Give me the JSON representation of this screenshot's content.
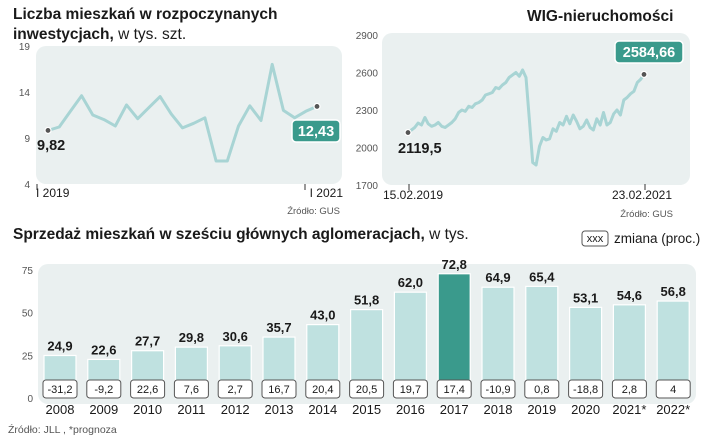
{
  "colors": {
    "panel": "#eaf0f0",
    "line": "#a8d4d4",
    "bar": "#bfe1e0",
    "highlight": "#3a9a8c",
    "callout": "#3a9a8c",
    "text": "#1a1a1a",
    "gray": "#555555"
  },
  "chart_data": [
    {
      "type": "line",
      "title": "Liczba mieszkań w rozpoczynanych inwestycjach,",
      "title_line1": "Liczba mieszkań w rozpoczynanych",
      "title_line2_bold": "inwestycjach,",
      "title_unit": " w tys. szt.",
      "ylim": [
        4,
        19
      ],
      "yticks": [
        19,
        14,
        9,
        4
      ],
      "x_start_label": "I 2019",
      "x_end_label": "I 2021",
      "start_value": "9,82",
      "end_value": "12,43",
      "values": [
        9.82,
        10.2,
        11.9,
        13.6,
        11.5,
        11.0,
        10.3,
        12.6,
        11.1,
        12.3,
        13.5,
        11.6,
        10.1,
        10.6,
        11.2,
        6.5,
        6.5,
        10.3,
        12.5,
        10.9,
        17.0,
        12.0,
        11.2,
        11.9,
        12.43
      ],
      "source": "Źródło: GUS"
    },
    {
      "type": "line",
      "title": "WIG-nieruchomości",
      "ylim": [
        1700,
        2900
      ],
      "yticks": [
        2900,
        2600,
        2300,
        2000,
        1700
      ],
      "x_start_label": "15.02.2019",
      "x_end_label": "23.02.2021",
      "start_value": "2119,5",
      "end_value": "2584,66",
      "values": [
        2119.5,
        2140,
        2160,
        2195,
        2180,
        2240,
        2190,
        2170,
        2180,
        2200,
        2170,
        2160,
        2180,
        2200,
        2230,
        2280,
        2300,
        2290,
        2330,
        2320,
        2350,
        2360,
        2380,
        2420,
        2430,
        2440,
        2480,
        2470,
        2500,
        2520,
        2560,
        2580,
        2600,
        2570,
        2620,
        2560,
        2220,
        1880,
        1860,
        2010,
        2080,
        2060,
        2070,
        2150,
        2130,
        2200,
        2180,
        2250,
        2190,
        2260,
        2210,
        2150,
        2170,
        2220,
        2160,
        2140,
        2230,
        2180,
        2280,
        2180,
        2200,
        2270,
        2300,
        2260,
        2380,
        2400,
        2430,
        2450,
        2520,
        2545,
        2584.66
      ],
      "source": "Źródło: GUS"
    },
    {
      "type": "bar",
      "title_bold": "Sprzedaż mieszkań w sześciu głównych aglomeracjach,",
      "title_unit": " w tys.",
      "legend_box": "xxx",
      "legend_label": "zmiana (proc.)",
      "ylim": [
        0,
        75
      ],
      "yticks": [
        75,
        50,
        25,
        0
      ],
      "categories": [
        "2008",
        "2009",
        "2010",
        "2011",
        "2012",
        "2013",
        "2014",
        "2015",
        "2016",
        "2017",
        "2018",
        "2019",
        "2020",
        "2021*",
        "2022*"
      ],
      "values": [
        24.9,
        22.6,
        27.7,
        29.8,
        30.6,
        35.7,
        43.0,
        51.8,
        62.0,
        72.8,
        64.9,
        65.4,
        53.1,
        54.6,
        56.8
      ],
      "value_labels": [
        "24,9",
        "22,6",
        "27,7",
        "29,8",
        "30,6",
        "35,7",
        "43,0",
        "51,8",
        "62,0",
        "72,8",
        "64,9",
        "65,4",
        "53,1",
        "54,6",
        "56,8"
      ],
      "change_labels": [
        "-31,2",
        "-9,2",
        "22,6",
        "7,6",
        "2,7",
        "16,7",
        "20,4",
        "20,5",
        "19,7",
        "17,4",
        "-10,9",
        "0,8",
        "-18,8",
        "2,8",
        "4"
      ],
      "highlight_category": "2017",
      "source": "Źródło: JLL , *prognoza"
    }
  ]
}
